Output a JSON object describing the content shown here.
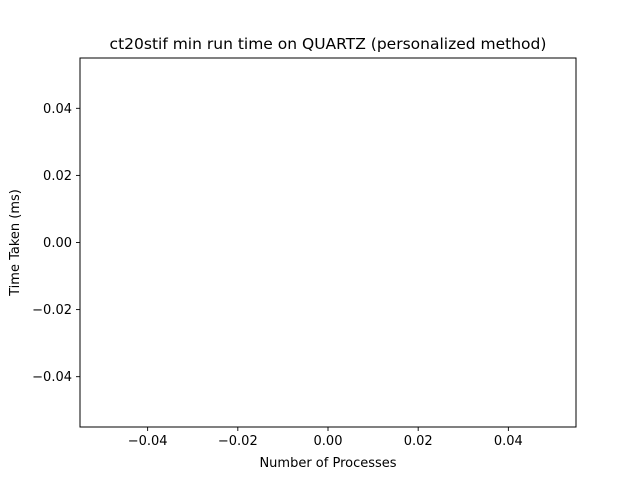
{
  "chart_data": {
    "type": "line",
    "title": "ct20stif min run time on QUARTZ (personalized method)",
    "xlabel": "Number of Processes",
    "ylabel": "Time Taken (ms)",
    "xlim": [
      -0.055,
      0.055
    ],
    "ylim": [
      -0.055,
      0.055
    ],
    "xticks": [
      -0.04,
      -0.02,
      0.0,
      0.02,
      0.04
    ],
    "yticks": [
      -0.04,
      -0.02,
      0.0,
      0.02,
      0.04
    ],
    "xtick_labels": [
      "−0.04",
      "−0.02",
      "0.00",
      "0.02",
      "0.04"
    ],
    "ytick_labels": [
      "−0.04",
      "−0.02",
      "0.00",
      "0.02",
      "0.04"
    ],
    "series": [],
    "grid": false,
    "legend": "none"
  }
}
